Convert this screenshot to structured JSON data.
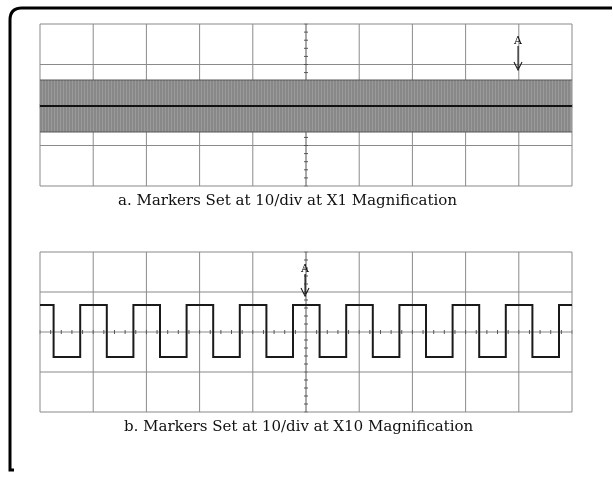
{
  "panels": [
    {
      "caption": "a.  Markers Set at 10/div at X1 Magnification",
      "marker_label": "A",
      "magnification": "X1",
      "markers_per_division": 10,
      "signal": "dense square wave (unresolved cycles)"
    },
    {
      "caption": "b.  Markers Set at 10/div at X10 Magnification",
      "marker_label": "A",
      "magnification": "X10",
      "markers_per_division": 10,
      "signal": "square wave",
      "visible_cycles": 10
    }
  ],
  "colors": {
    "background": "#ffffff",
    "grid": "#8a8a8a",
    "trace": "#1a1a1a",
    "dense_band": "#9a9a9a",
    "frame": "#000000"
  }
}
